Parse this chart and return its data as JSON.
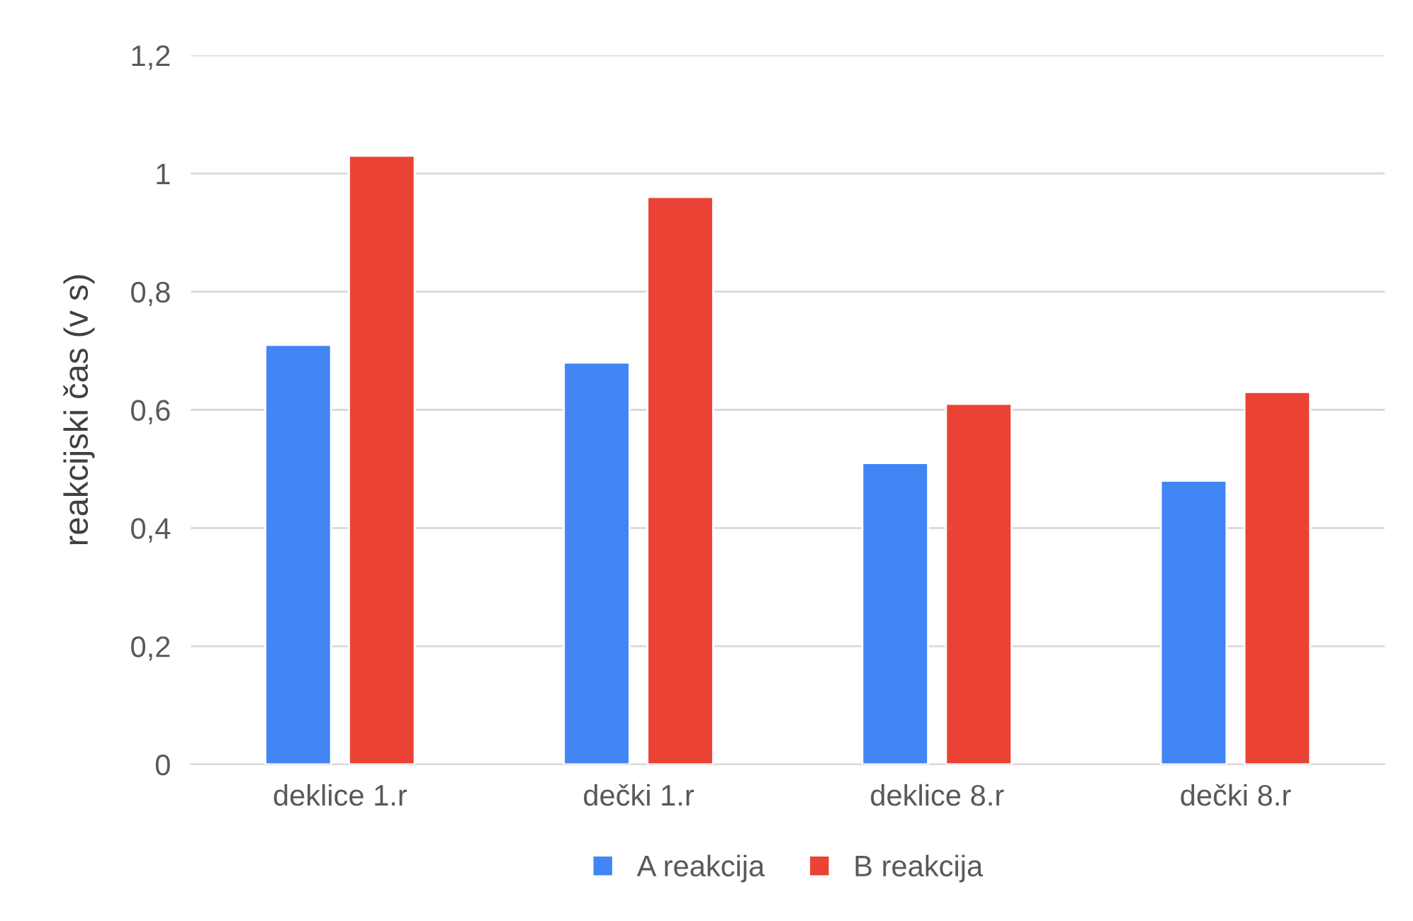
{
  "chart_data": {
    "type": "bar",
    "ylabel": "reakcijski čas (v s)",
    "categories": [
      "deklice 1.r",
      "dečki 1.r",
      "deklice 8.r",
      "dečki 8.r"
    ],
    "series": [
      {
        "name": "A reakcija",
        "color": "#4285f4",
        "values": [
          0.71,
          0.68,
          0.51,
          0.48
        ]
      },
      {
        "name": "B reakcija",
        "color": "#ea4335",
        "values": [
          1.03,
          0.96,
          0.61,
          0.63
        ]
      }
    ],
    "ylim": [
      0,
      1.2
    ],
    "yticks": [
      {
        "value": 0,
        "label": "0"
      },
      {
        "value": 0.2,
        "label": "0,2"
      },
      {
        "value": 0.4,
        "label": "0,4"
      },
      {
        "value": 0.6,
        "label": "0,6"
      },
      {
        "value": 0.8,
        "label": "0,8"
      },
      {
        "value": 1,
        "label": "1"
      },
      {
        "value": 1.2,
        "label": "1,2"
      }
    ],
    "grid": "y",
    "legend": "bottom"
  }
}
